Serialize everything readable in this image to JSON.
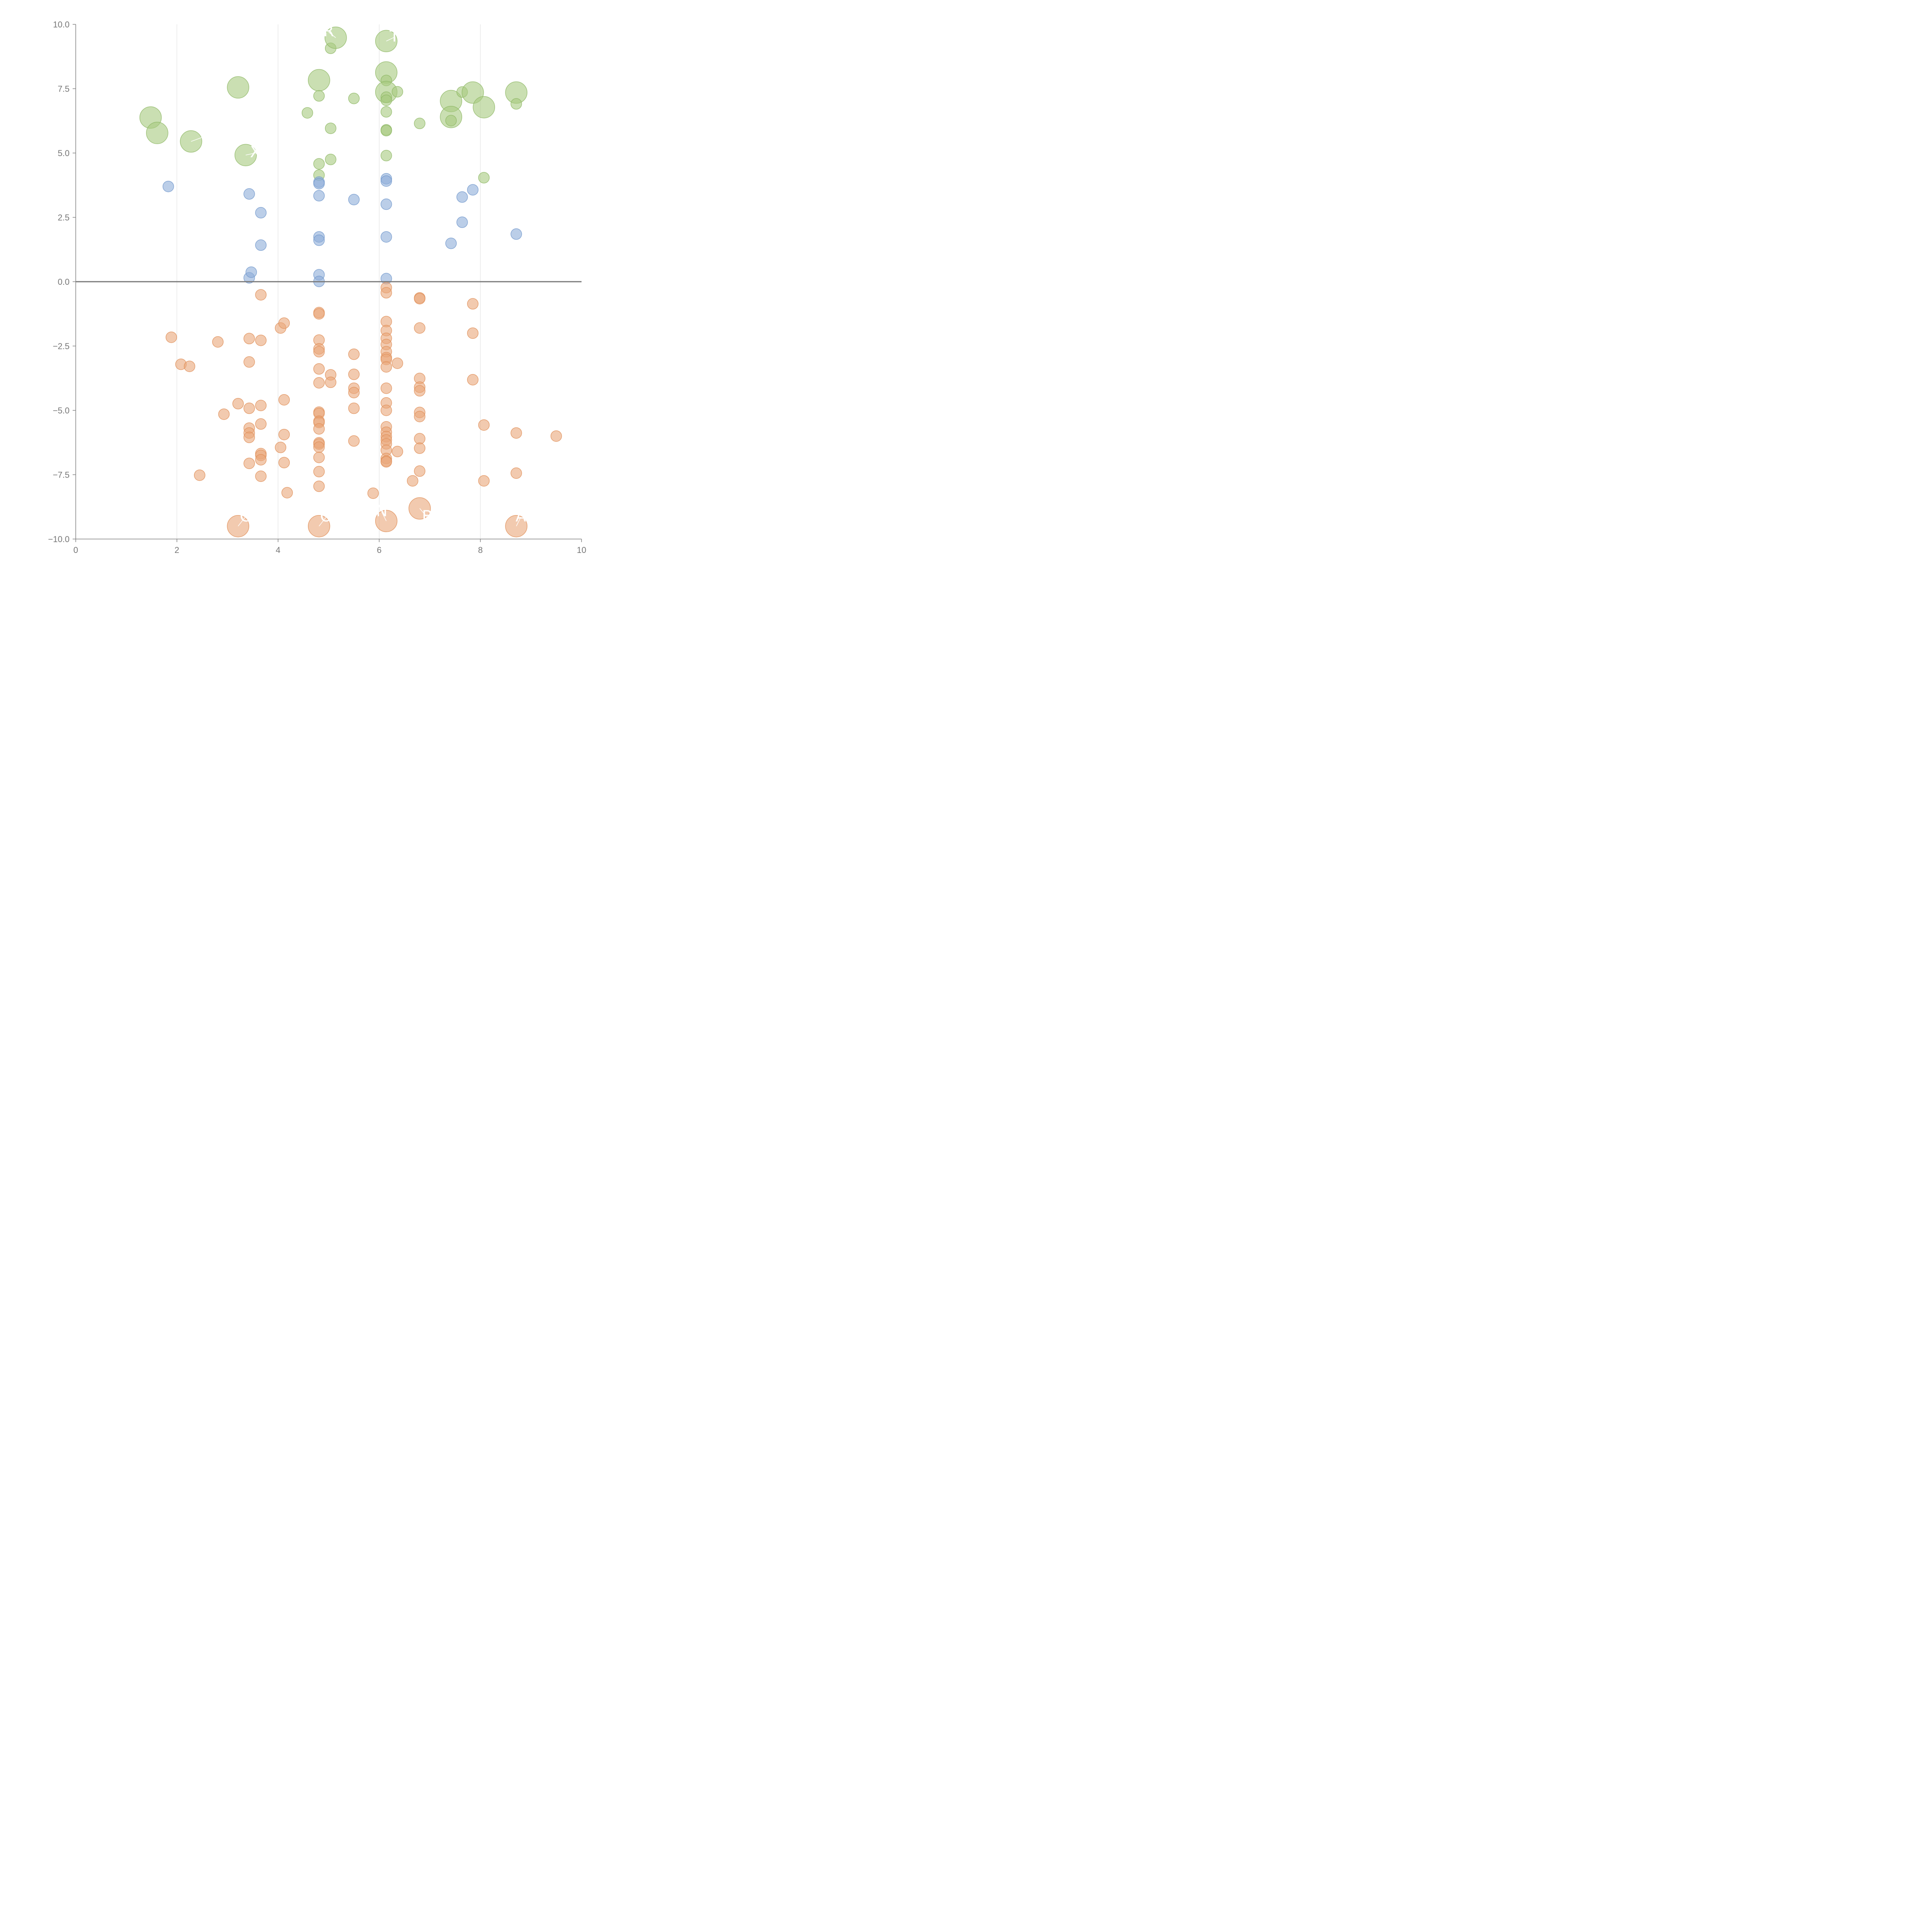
{
  "chart_data": {
    "type": "scatter",
    "title": "",
    "xlabel": "",
    "ylabel": "",
    "xlim": [
      0,
      10
    ],
    "ylim": [
      -10,
      10
    ],
    "x_ticks": [
      0,
      2,
      4,
      6,
      8,
      10
    ],
    "x_tick_labels": [
      "0",
      "2",
      "4",
      "6",
      "8",
      "10"
    ],
    "y_ticks": [
      10,
      7.5,
      5,
      2.5,
      0,
      -2.5,
      -5,
      -7.5,
      -10
    ],
    "y_tick_labels": [
      "10.0",
      "7.5",
      "5.0",
      "2.5",
      "0.0",
      "−2.5",
      "−5.0",
      "−7.5",
      "−10.0"
    ],
    "grid_x": [
      2,
      4,
      6,
      8
    ],
    "reference_line_y": 0,
    "colors": {
      "green": "#a6c97e",
      "green_stroke": "#8fb865",
      "blue": "#8eaed8",
      "blue_stroke": "#7097cc",
      "orange": "#eaa77a",
      "orange_stroke": "#e08e58"
    },
    "series": [
      {
        "name": "green",
        "color": "green",
        "points": [
          [
            1.48,
            6.38,
            28
          ],
          [
            1.61,
            5.78,
            28
          ],
          [
            2.28,
            5.45,
            28
          ],
          [
            3.21,
            7.55,
            28
          ],
          [
            3.36,
            4.92,
            28
          ],
          [
            4.58,
            6.56,
            14
          ],
          [
            4.81,
            7.83,
            28
          ],
          [
            4.81,
            7.22,
            14
          ],
          [
            4.81,
            4.58,
            14
          ],
          [
            4.81,
            4.14,
            14
          ],
          [
            5.04,
            9.07,
            14
          ],
          [
            5.04,
            5.96,
            14
          ],
          [
            5.04,
            4.75,
            14
          ],
          [
            5.14,
            9.48,
            28
          ],
          [
            5.5,
            7.12,
            14
          ],
          [
            6.14,
            9.35,
            28
          ],
          [
            6.14,
            8.13,
            28
          ],
          [
            6.14,
            7.82,
            14
          ],
          [
            6.14,
            7.37,
            28
          ],
          [
            6.14,
            7.17,
            14
          ],
          [
            6.14,
            7.05,
            14
          ],
          [
            6.14,
            6.6,
            14
          ],
          [
            6.14,
            5.9,
            14
          ],
          [
            6.14,
            5.87,
            14
          ],
          [
            6.14,
            4.9,
            14
          ],
          [
            6.36,
            7.38,
            14
          ],
          [
            6.8,
            6.15,
            14
          ],
          [
            7.42,
            7.02,
            28
          ],
          [
            7.42,
            6.4,
            28
          ],
          [
            7.42,
            6.26,
            14
          ],
          [
            7.64,
            7.37,
            14
          ],
          [
            7.85,
            7.35,
            28
          ],
          [
            8.07,
            6.78,
            28
          ],
          [
            8.07,
            4.04,
            14
          ],
          [
            8.71,
            7.35,
            28
          ],
          [
            8.71,
            6.91,
            14
          ]
        ]
      },
      {
        "name": "blue",
        "color": "blue",
        "points": [
          [
            1.83,
            3.7,
            14
          ],
          [
            3.43,
            3.41,
            14
          ],
          [
            3.43,
            0.15,
            14
          ],
          [
            3.47,
            0.37,
            14
          ],
          [
            3.66,
            2.68,
            14
          ],
          [
            3.66,
            1.42,
            14
          ],
          [
            4.81,
            3.87,
            14
          ],
          [
            4.81,
            3.81,
            14
          ],
          [
            4.81,
            3.34,
            14
          ],
          [
            4.81,
            1.74,
            14
          ],
          [
            4.81,
            1.61,
            14
          ],
          [
            4.81,
            0.27,
            14
          ],
          [
            4.81,
            0.01,
            14
          ],
          [
            5.5,
            3.19,
            14
          ],
          [
            6.14,
            4.0,
            14
          ],
          [
            6.14,
            3.91,
            14
          ],
          [
            6.14,
            3.01,
            14
          ],
          [
            6.14,
            1.74,
            14
          ],
          [
            6.14,
            0.12,
            14
          ],
          [
            7.42,
            1.49,
            14
          ],
          [
            7.64,
            3.29,
            14
          ],
          [
            7.64,
            2.31,
            14
          ],
          [
            7.85,
            3.57,
            14
          ],
          [
            8.71,
            1.85,
            14
          ]
        ]
      },
      {
        "name": "orange",
        "color": "orange",
        "points": [
          [
            1.89,
            -2.16,
            14
          ],
          [
            2.08,
            -3.21,
            14
          ],
          [
            2.25,
            -3.29,
            14
          ],
          [
            2.45,
            -7.52,
            14
          ],
          [
            2.81,
            -2.34,
            14
          ],
          [
            2.93,
            -5.15,
            14
          ],
          [
            3.21,
            -4.74,
            14
          ],
          [
            3.21,
            -9.5,
            28
          ],
          [
            3.43,
            -2.21,
            14
          ],
          [
            3.43,
            -3.12,
            14
          ],
          [
            3.43,
            -4.92,
            14
          ],
          [
            3.43,
            -5.69,
            14
          ],
          [
            3.43,
            -5.88,
            14
          ],
          [
            3.43,
            -6.05,
            14
          ],
          [
            3.43,
            -7.06,
            14
          ],
          [
            3.66,
            -0.51,
            14
          ],
          [
            3.66,
            -2.28,
            14
          ],
          [
            3.66,
            -4.81,
            14
          ],
          [
            3.66,
            -5.53,
            14
          ],
          [
            3.66,
            -6.68,
            14
          ],
          [
            3.66,
            -6.75,
            14
          ],
          [
            3.66,
            -6.92,
            14
          ],
          [
            3.66,
            -7.56,
            14
          ],
          [
            4.05,
            -1.8,
            14
          ],
          [
            4.05,
            -6.44,
            14
          ],
          [
            4.12,
            -1.61,
            14
          ],
          [
            4.12,
            -4.59,
            14
          ],
          [
            4.12,
            -5.94,
            14
          ],
          [
            4.12,
            -7.03,
            14
          ],
          [
            4.18,
            -8.2,
            14
          ],
          [
            4.81,
            -1.2,
            14
          ],
          [
            4.81,
            -1.25,
            14
          ],
          [
            4.81,
            -2.27,
            14
          ],
          [
            4.81,
            -2.61,
            14
          ],
          [
            4.81,
            -2.72,
            14
          ],
          [
            4.81,
            -3.39,
            14
          ],
          [
            4.81,
            -3.93,
            14
          ],
          [
            4.81,
            -5.07,
            14
          ],
          [
            4.81,
            -5.12,
            14
          ],
          [
            4.81,
            -5.42,
            14
          ],
          [
            4.81,
            -5.47,
            14
          ],
          [
            4.81,
            -5.72,
            14
          ],
          [
            4.81,
            -6.26,
            14
          ],
          [
            4.81,
            -6.31,
            14
          ],
          [
            4.81,
            -6.43,
            14
          ],
          [
            4.81,
            -6.83,
            14
          ],
          [
            4.81,
            -7.38,
            14
          ],
          [
            4.81,
            -7.95,
            14
          ],
          [
            4.81,
            -9.5,
            28
          ],
          [
            5.04,
            -3.62,
            14
          ],
          [
            5.04,
            -3.91,
            14
          ],
          [
            5.5,
            -2.82,
            14
          ],
          [
            5.5,
            -3.6,
            14
          ],
          [
            5.5,
            -4.14,
            14
          ],
          [
            5.5,
            -4.31,
            14
          ],
          [
            5.5,
            -4.92,
            14
          ],
          [
            5.5,
            -6.19,
            14
          ],
          [
            5.88,
            -8.22,
            14
          ],
          [
            6.14,
            -0.23,
            14
          ],
          [
            6.14,
            -0.43,
            14
          ],
          [
            6.14,
            -1.55,
            14
          ],
          [
            6.14,
            -1.9,
            14
          ],
          [
            6.14,
            -2.2,
            14
          ],
          [
            6.14,
            -2.44,
            14
          ],
          [
            6.14,
            -2.72,
            14
          ],
          [
            6.14,
            -2.95,
            14
          ],
          [
            6.14,
            -3.02,
            14
          ],
          [
            6.14,
            -3.31,
            14
          ],
          [
            6.14,
            -4.14,
            14
          ],
          [
            6.14,
            -4.71,
            14
          ],
          [
            6.14,
            -5.0,
            14
          ],
          [
            6.14,
            -5.64,
            14
          ],
          [
            6.14,
            -5.85,
            14
          ],
          [
            6.14,
            -6.02,
            14
          ],
          [
            6.14,
            -6.15,
            14
          ],
          [
            6.14,
            -6.3,
            14
          ],
          [
            6.14,
            -6.55,
            14
          ],
          [
            6.14,
            -6.87,
            14
          ],
          [
            6.14,
            -6.97,
            14
          ],
          [
            6.14,
            -7.0,
            14
          ],
          [
            6.14,
            -9.3,
            28
          ],
          [
            6.36,
            -3.17,
            14
          ],
          [
            6.36,
            -6.6,
            14
          ],
          [
            6.66,
            -7.74,
            14
          ],
          [
            6.8,
            -0.63,
            14
          ],
          [
            6.8,
            -0.66,
            14
          ],
          [
            6.8,
            -1.8,
            14
          ],
          [
            6.8,
            -3.76,
            14
          ],
          [
            6.8,
            -4.1,
            14
          ],
          [
            6.8,
            -4.24,
            14
          ],
          [
            6.8,
            -5.08,
            14
          ],
          [
            6.8,
            -5.24,
            14
          ],
          [
            6.8,
            -6.1,
            14
          ],
          [
            6.8,
            -6.47,
            14
          ],
          [
            6.8,
            -7.36,
            14
          ],
          [
            6.8,
            -8.81,
            28
          ],
          [
            7.85,
            -0.86,
            14
          ],
          [
            7.85,
            -2.0,
            14
          ],
          [
            7.85,
            -3.81,
            14
          ],
          [
            8.07,
            -5.57,
            14
          ],
          [
            8.07,
            -7.74,
            14
          ],
          [
            8.71,
            -5.88,
            14
          ],
          [
            8.71,
            -7.44,
            14
          ],
          [
            8.71,
            -9.5,
            28
          ],
          [
            9.5,
            -6.0,
            14
          ]
        ]
      }
    ],
    "annotations": [
      {
        "text": "R",
        "x": 5.0,
        "y": 9.7,
        "to": [
          5.14,
          9.48
        ]
      },
      {
        "text": "T",
        "x": 6.3,
        "y": 9.5,
        "to": [
          6.14,
          9.35
        ]
      },
      {
        "text": "LO",
        "x": 2.7,
        "y": 5.75,
        "to": [
          2.28,
          5.45
        ]
      },
      {
        "text": "X",
        "x": 3.55,
        "y": 5.0,
        "to": [
          3.36,
          4.92
        ]
      },
      {
        "text": "C",
        "x": 3.35,
        "y": -9.15,
        "to": [
          3.21,
          -9.5
        ]
      },
      {
        "text": "O",
        "x": 4.95,
        "y": -9.15,
        "to": [
          4.81,
          -9.5
        ]
      },
      {
        "text": "N",
        "x": 6.05,
        "y": -8.95,
        "to": [
          6.14,
          -9.3
        ]
      },
      {
        "text": "B",
        "x": 6.95,
        "y": -9.15,
        "to": [
          6.8,
          -8.81
        ]
      },
      {
        "text": "A",
        "x": 8.8,
        "y": -9.15,
        "to": [
          8.71,
          -9.5
        ]
      }
    ]
  }
}
